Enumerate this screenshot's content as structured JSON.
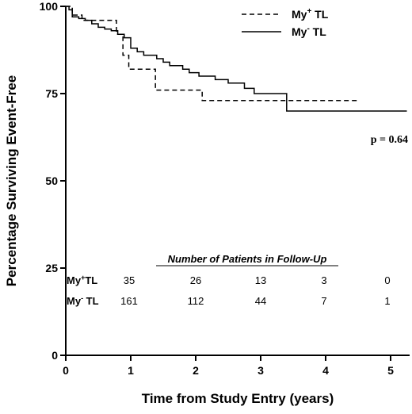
{
  "chart_data": {
    "type": "line",
    "xlabel": "Time from Study Entry (years)",
    "ylabel": "Percentage Surviving Event-Free",
    "xlim": [
      0,
      5.25
    ],
    "ylim": [
      0,
      100
    ],
    "xticks": [
      0,
      1,
      2,
      3,
      4,
      5
    ],
    "yticks": [
      0,
      25,
      50,
      75,
      100
    ],
    "legend_position": "top-right",
    "series": [
      {
        "name_prefix": "My",
        "name_sup": "+",
        "name_suffix": " TL",
        "style": "dashed",
        "steps": [
          [
            0,
            100
          ],
          [
            0.1,
            97.5
          ],
          [
            0.25,
            96
          ],
          [
            0.78,
            96
          ],
          [
            0.78,
            92
          ],
          [
            0.88,
            92
          ],
          [
            0.88,
            86
          ],
          [
            0.97,
            86
          ],
          [
            0.97,
            82
          ],
          [
            1.38,
            82
          ],
          [
            1.38,
            76
          ],
          [
            2.1,
            76
          ],
          [
            2.1,
            73
          ],
          [
            4.5,
            73
          ]
        ]
      },
      {
        "name_prefix": "My",
        "name_sup": "-",
        "name_suffix": " TL",
        "style": "solid",
        "steps": [
          [
            0,
            100
          ],
          [
            0.05,
            99
          ],
          [
            0.1,
            97
          ],
          [
            0.2,
            96.5
          ],
          [
            0.3,
            96
          ],
          [
            0.4,
            95
          ],
          [
            0.5,
            94
          ],
          [
            0.6,
            93.5
          ],
          [
            0.7,
            93
          ],
          [
            0.8,
            92
          ],
          [
            0.9,
            91
          ],
          [
            1.0,
            88
          ],
          [
            1.1,
            87
          ],
          [
            1.2,
            86
          ],
          [
            1.4,
            85
          ],
          [
            1.5,
            84
          ],
          [
            1.6,
            83
          ],
          [
            1.8,
            82
          ],
          [
            1.9,
            81
          ],
          [
            2.05,
            80
          ],
          [
            2.3,
            79
          ],
          [
            2.5,
            78
          ],
          [
            2.75,
            76.5
          ],
          [
            2.9,
            75
          ],
          [
            3.4,
            75
          ],
          [
            3.4,
            70
          ],
          [
            5.25,
            70
          ]
        ]
      }
    ],
    "annotation": "p = 0.64",
    "followup_table": {
      "title": "Number of Patients in Follow-Up",
      "rows": [
        {
          "label_prefix": "My",
          "label_sup": "+",
          "label_suffix": "TL",
          "counts": [
            "35",
            "26",
            "13",
            "3",
            "0"
          ]
        },
        {
          "label_prefix": "My",
          "label_sup": "-",
          "label_suffix": " TL",
          "counts": [
            "161",
            "112",
            "44",
            "7",
            "1"
          ]
        }
      ]
    }
  }
}
